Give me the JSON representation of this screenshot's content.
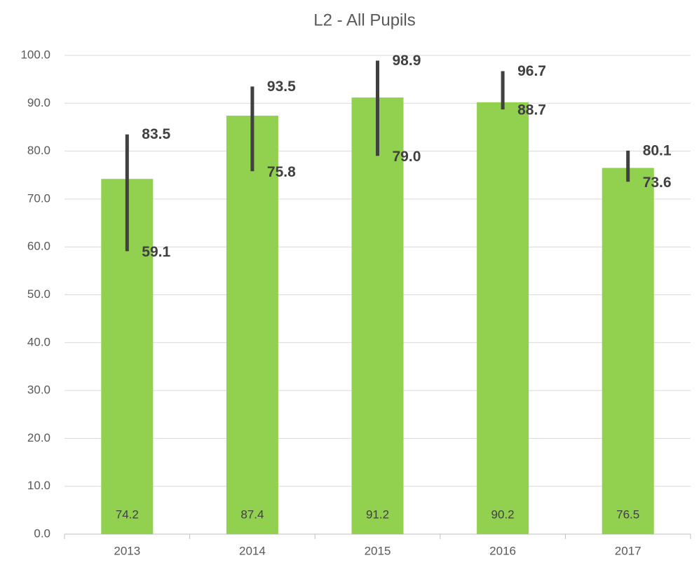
{
  "chart_data": {
    "type": "bar",
    "title": "L2 - All Pupils",
    "categories": [
      "2013",
      "2014",
      "2015",
      "2016",
      "2017"
    ],
    "values": [
      74.2,
      87.4,
      91.2,
      90.2,
      76.5
    ],
    "color": "#92d050",
    "error_bars": {
      "color": "#404040",
      "high": [
        83.5,
        93.5,
        98.9,
        96.7,
        80.1
      ],
      "low": [
        59.1,
        75.8,
        79,
        88.7,
        73.6
      ],
      "low_labels": [
        "59.1",
        "75.8",
        "79.0",
        "88.7",
        "73.6"
      ]
    },
    "ylim": [
      0,
      100
    ],
    "yticks": [
      {
        "value": 0,
        "label": "0.0"
      },
      {
        "value": 10,
        "label": "10.0"
      },
      {
        "value": 20,
        "label": "20.0"
      },
      {
        "value": 30,
        "label": "30.0"
      },
      {
        "value": 40,
        "label": "40.0"
      },
      {
        "value": 50,
        "label": "50.0"
      },
      {
        "value": 60,
        "label": "60.0"
      },
      {
        "value": 70,
        "label": "70.0"
      },
      {
        "value": 80,
        "label": "80.0"
      },
      {
        "value": 90,
        "label": "90.0"
      },
      {
        "value": 100,
        "label": "100.0"
      }
    ],
    "grid": true
  }
}
